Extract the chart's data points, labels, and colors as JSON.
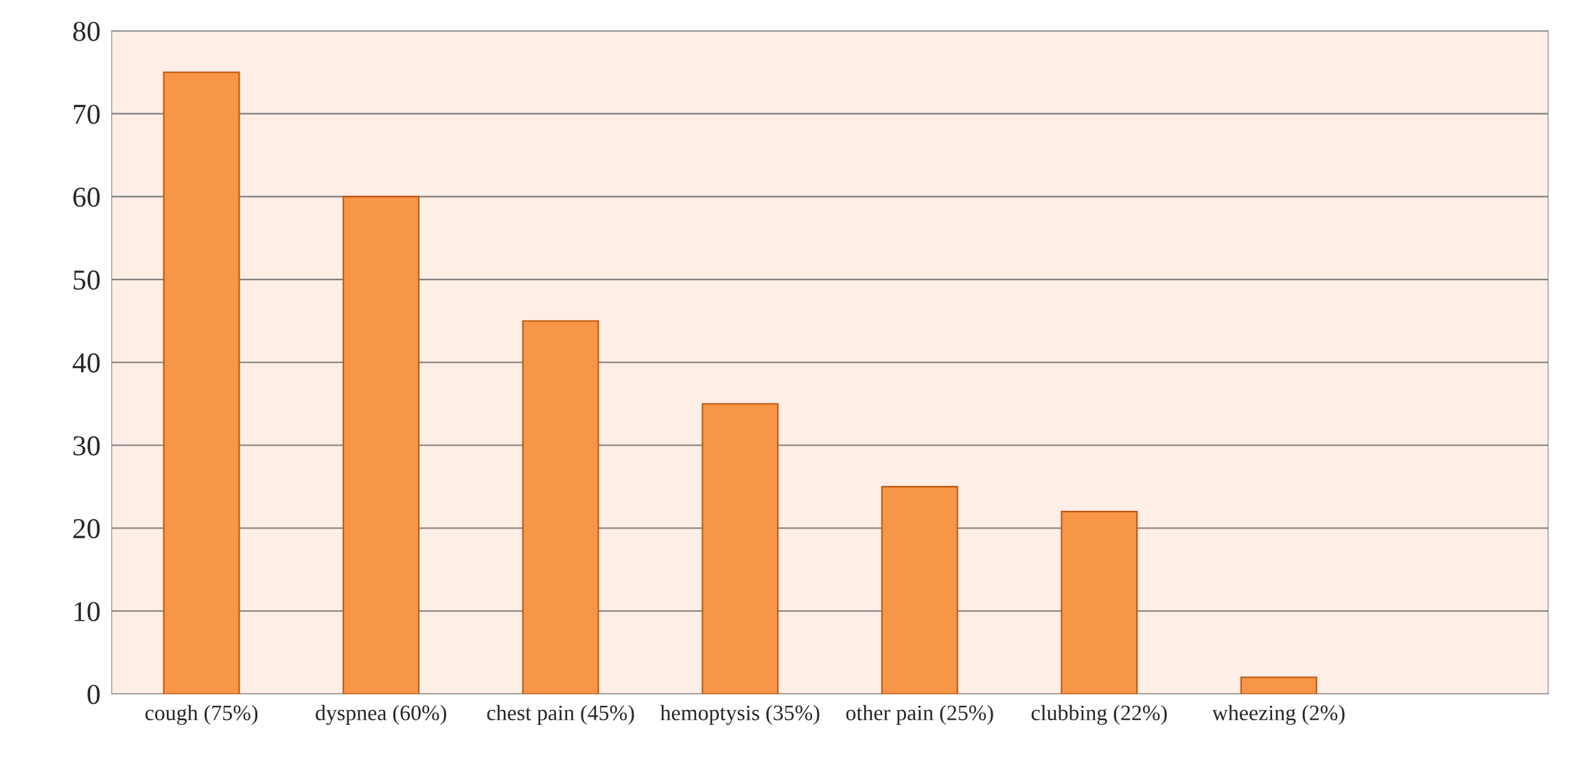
{
  "chart_data": {
    "type": "bar",
    "categories": [
      "cough (75%)",
      "dyspnea (60%)",
      "chest pain (45%)",
      "hemoptysis (35%)",
      "other pain (25%)",
      "clubbing (22%)",
      "wheezing (2%)",
      null
    ],
    "values": [
      75,
      60,
      45,
      35,
      25,
      22,
      2,
      null
    ],
    "color": "#f79646",
    "ylim": [
      0,
      80
    ],
    "yticks": [
      0,
      10,
      20,
      30,
      40,
      50,
      60,
      70,
      80
    ],
    "grid": "y"
  }
}
